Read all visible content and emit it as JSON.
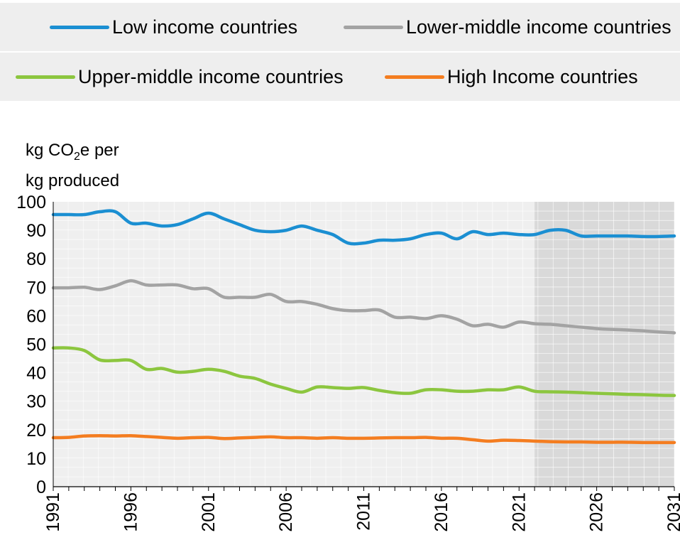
{
  "legend": {
    "low": "Low income countries",
    "lower_middle": "Lower-middle income countries",
    "upper_middle": "Upper-middle income countries",
    "high": "High Income countries"
  },
  "ylabel": {
    "line1_pre": "kg CO",
    "line1_sub": "2",
    "line1_post": "e per",
    "line2": "kg produced"
  },
  "colors": {
    "low": "#1b8fd2",
    "lower_middle": "#a3a3a3",
    "upper_middle": "#8cc63f",
    "high": "#f47d20",
    "plot_bg": "#efefef",
    "projection_bg": "#d9d9d9"
  },
  "chart_data": {
    "type": "line",
    "xlim": [
      1991,
      2031
    ],
    "ylim": [
      0,
      100
    ],
    "yticks": [
      0,
      10,
      20,
      30,
      40,
      50,
      60,
      70,
      80,
      90,
      100
    ],
    "xticks": [
      1991,
      1996,
      2001,
      2006,
      2011,
      2016,
      2021,
      2026,
      2031
    ],
    "projection_start": 2022,
    "x": [
      1991,
      1992,
      1993,
      1994,
      1995,
      1996,
      1997,
      1998,
      1999,
      2000,
      2001,
      2002,
      2003,
      2004,
      2005,
      2006,
      2007,
      2008,
      2009,
      2010,
      2011,
      2012,
      2013,
      2014,
      2015,
      2016,
      2017,
      2018,
      2019,
      2020,
      2021,
      2022,
      2023,
      2024,
      2025,
      2026,
      2027,
      2028,
      2029,
      2030,
      2031
    ],
    "series": [
      {
        "name": "Low income countries",
        "key": "low",
        "values": [
          95.5,
          95.5,
          95.5,
          96.5,
          96.5,
          92.5,
          92.5,
          91.5,
          92.0,
          94.0,
          96.0,
          94.0,
          92.0,
          90.0,
          89.5,
          90.0,
          91.5,
          90.0,
          88.5,
          85.5,
          85.5,
          86.5,
          86.5,
          87.0,
          88.5,
          89.0,
          87.0,
          89.5,
          88.5,
          89.0,
          88.5,
          88.5,
          90.0,
          90.0,
          88.0,
          88.0,
          88.0,
          88.0,
          87.8,
          87.8,
          88.0
        ]
      },
      {
        "name": "Lower-middle income countries",
        "key": "lower_middle",
        "values": [
          69.8,
          69.8,
          70.0,
          69.2,
          70.5,
          72.3,
          70.8,
          70.8,
          70.8,
          69.5,
          69.5,
          66.5,
          66.5,
          66.5,
          67.5,
          65.0,
          65.0,
          64.0,
          62.5,
          61.8,
          61.8,
          62.0,
          59.5,
          59.5,
          59.0,
          60.0,
          58.8,
          56.5,
          57.0,
          56.0,
          57.8,
          57.2,
          57.0,
          56.5,
          56.0,
          55.5,
          55.2,
          55.0,
          54.7,
          54.3,
          54.0
        ]
      },
      {
        "name": "Upper-middle income countries",
        "key": "upper_middle",
        "values": [
          48.7,
          48.7,
          47.8,
          44.5,
          44.3,
          44.3,
          41.2,
          41.5,
          40.2,
          40.5,
          41.2,
          40.5,
          38.8,
          38.0,
          36.0,
          34.5,
          33.2,
          35.0,
          34.8,
          34.5,
          34.8,
          33.8,
          33.0,
          32.8,
          34.0,
          34.0,
          33.5,
          33.5,
          34.0,
          34.0,
          35.0,
          33.5,
          33.3,
          33.2,
          33.0,
          32.8,
          32.6,
          32.4,
          32.3,
          32.1,
          32.0
        ]
      },
      {
        "name": "High Income countries",
        "key": "high",
        "values": [
          17.2,
          17.3,
          17.8,
          17.9,
          17.8,
          17.9,
          17.6,
          17.3,
          17.0,
          17.2,
          17.3,
          16.9,
          17.1,
          17.3,
          17.5,
          17.2,
          17.2,
          17.0,
          17.2,
          17.0,
          17.0,
          17.1,
          17.2,
          17.2,
          17.3,
          17.0,
          17.0,
          16.5,
          16.0,
          16.3,
          16.2,
          16.0,
          15.8,
          15.7,
          15.7,
          15.6,
          15.6,
          15.6,
          15.5,
          15.5,
          15.5
        ]
      }
    ]
  }
}
